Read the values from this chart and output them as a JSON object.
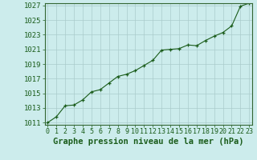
{
  "hours": [
    0,
    1,
    2,
    3,
    4,
    5,
    6,
    7,
    8,
    9,
    10,
    11,
    12,
    13,
    14,
    15,
    16,
    17,
    18,
    19,
    20,
    21,
    22,
    23
  ],
  "pressure": [
    1011.0,
    1011.8,
    1013.3,
    1013.4,
    1014.1,
    1015.2,
    1015.5,
    1016.4,
    1017.3,
    1017.6,
    1018.1,
    1018.8,
    1019.5,
    1020.9,
    1021.0,
    1021.1,
    1021.6,
    1021.5,
    1022.2,
    1022.8,
    1023.3,
    1024.2,
    1026.9,
    1027.3
  ],
  "ylim_min": 1011,
  "ylim_max": 1027,
  "yticks": [
    1011,
    1013,
    1015,
    1017,
    1019,
    1021,
    1023,
    1025,
    1027
  ],
  "xticks": [
    0,
    1,
    2,
    3,
    4,
    5,
    6,
    7,
    8,
    9,
    10,
    11,
    12,
    13,
    14,
    15,
    16,
    17,
    18,
    19,
    20,
    21,
    22,
    23
  ],
  "line_color": "#1a5c1a",
  "marker": "+",
  "bg_color": "#ccecec",
  "grid_color": "#aacccc",
  "border_color": "#336633",
  "xlabel": "Graphe pression niveau de la mer (hPa)",
  "tick_color": "#1a5c1a",
  "xlabel_fontsize": 7.5,
  "ytick_fontsize": 6.5,
  "xtick_fontsize": 6.0,
  "fig_width": 3.2,
  "fig_height": 2.0,
  "dpi": 100
}
